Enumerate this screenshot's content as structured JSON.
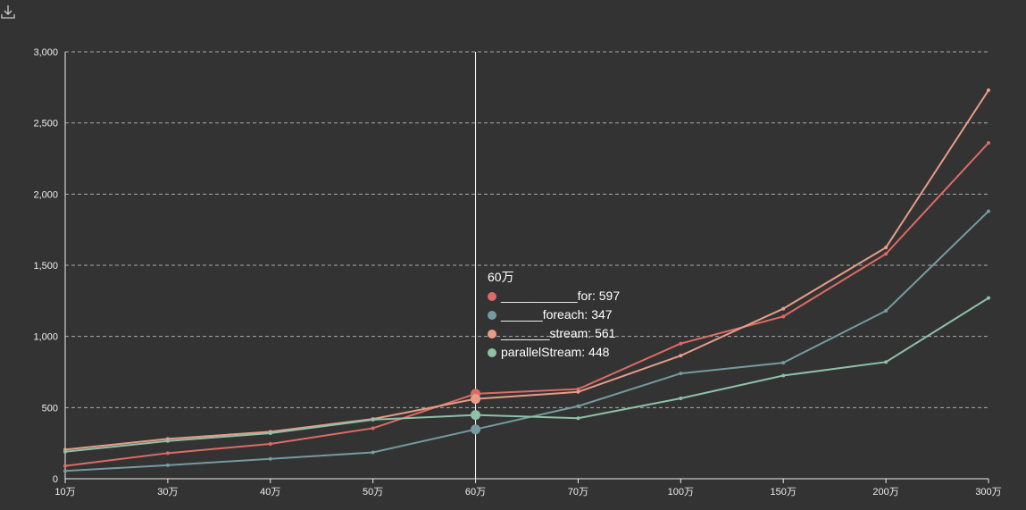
{
  "chart_data": {
    "type": "line",
    "title": "",
    "xlabel": "",
    "ylabel": "",
    "categories": [
      "10万",
      "30万",
      "40万",
      "50万",
      "60万",
      "70万",
      "100万",
      "150万",
      "200万",
      "300万"
    ],
    "ylim": [
      0,
      3000
    ],
    "yticks": [
      0,
      500,
      1000,
      1500,
      2000,
      2500,
      3000
    ],
    "ytick_labels": [
      "0",
      "500",
      "1,000",
      "1,500",
      "2,000",
      "2,500",
      "3,000"
    ],
    "grid": true,
    "series": [
      {
        "name": "___________for",
        "color": "#dd6b66",
        "values": [
          90,
          180,
          245,
          355,
          597,
          630,
          950,
          1140,
          1580,
          2360
        ]
      },
      {
        "name": "______foreach",
        "color": "#759aa0",
        "values": [
          55,
          95,
          140,
          185,
          347,
          510,
          740,
          815,
          1180,
          1880
        ]
      },
      {
        "name": "_______stream",
        "color": "#e69d87",
        "values": [
          205,
          280,
          330,
          420,
          561,
          610,
          865,
          1195,
          1625,
          2730
        ]
      },
      {
        "name": "parallelStream",
        "color": "#8dc1a9",
        "values": [
          190,
          265,
          320,
          415,
          448,
          425,
          565,
          725,
          820,
          1270
        ]
      }
    ],
    "tooltip": {
      "category": "60万",
      "index": 4,
      "items": [
        "___________for: 597",
        "______foreach: 347",
        "_______stream: 561",
        "parallelStream: 448"
      ]
    }
  },
  "toolbox": {
    "download_icon": "download-icon"
  }
}
